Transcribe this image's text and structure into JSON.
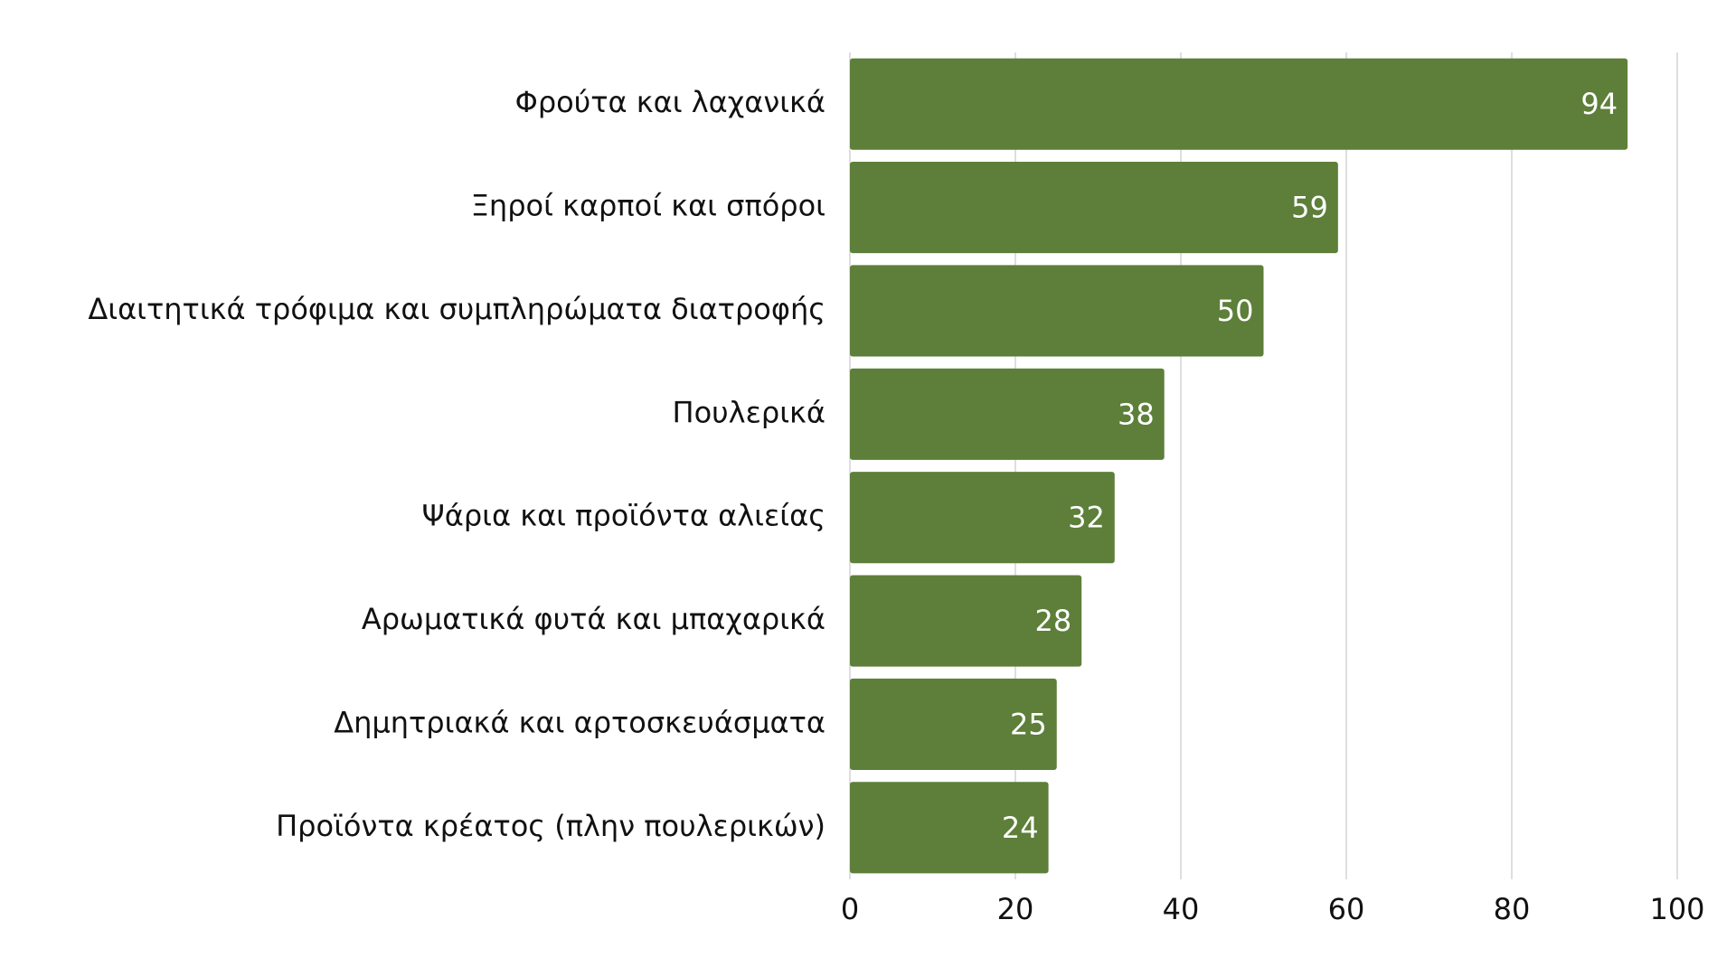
{
  "chart_data": {
    "type": "bar",
    "categories": [
      "Φρούτα και λαχανικά",
      "Ξηροί καρποί και σπόροι",
      "Διαιτητικά τρόφιμα και συμπληρώματα διατροφής",
      "Πουλερικά",
      "Ψάρια και προϊόντα αλιείας",
      "Αρωματικά φυτά και μπαχαρικά",
      "Δημητριακά και αρτοσκευάσματα",
      "Προϊόντα κρέατος (πλην πουλερικών)"
    ],
    "values": [
      94,
      59,
      50,
      38,
      32,
      28,
      25,
      24
    ],
    "color": "#5d7f39",
    "xlim": [
      0,
      100
    ],
    "xticks": [
      0,
      20,
      40,
      60,
      80,
      100
    ],
    "grid": true
  }
}
